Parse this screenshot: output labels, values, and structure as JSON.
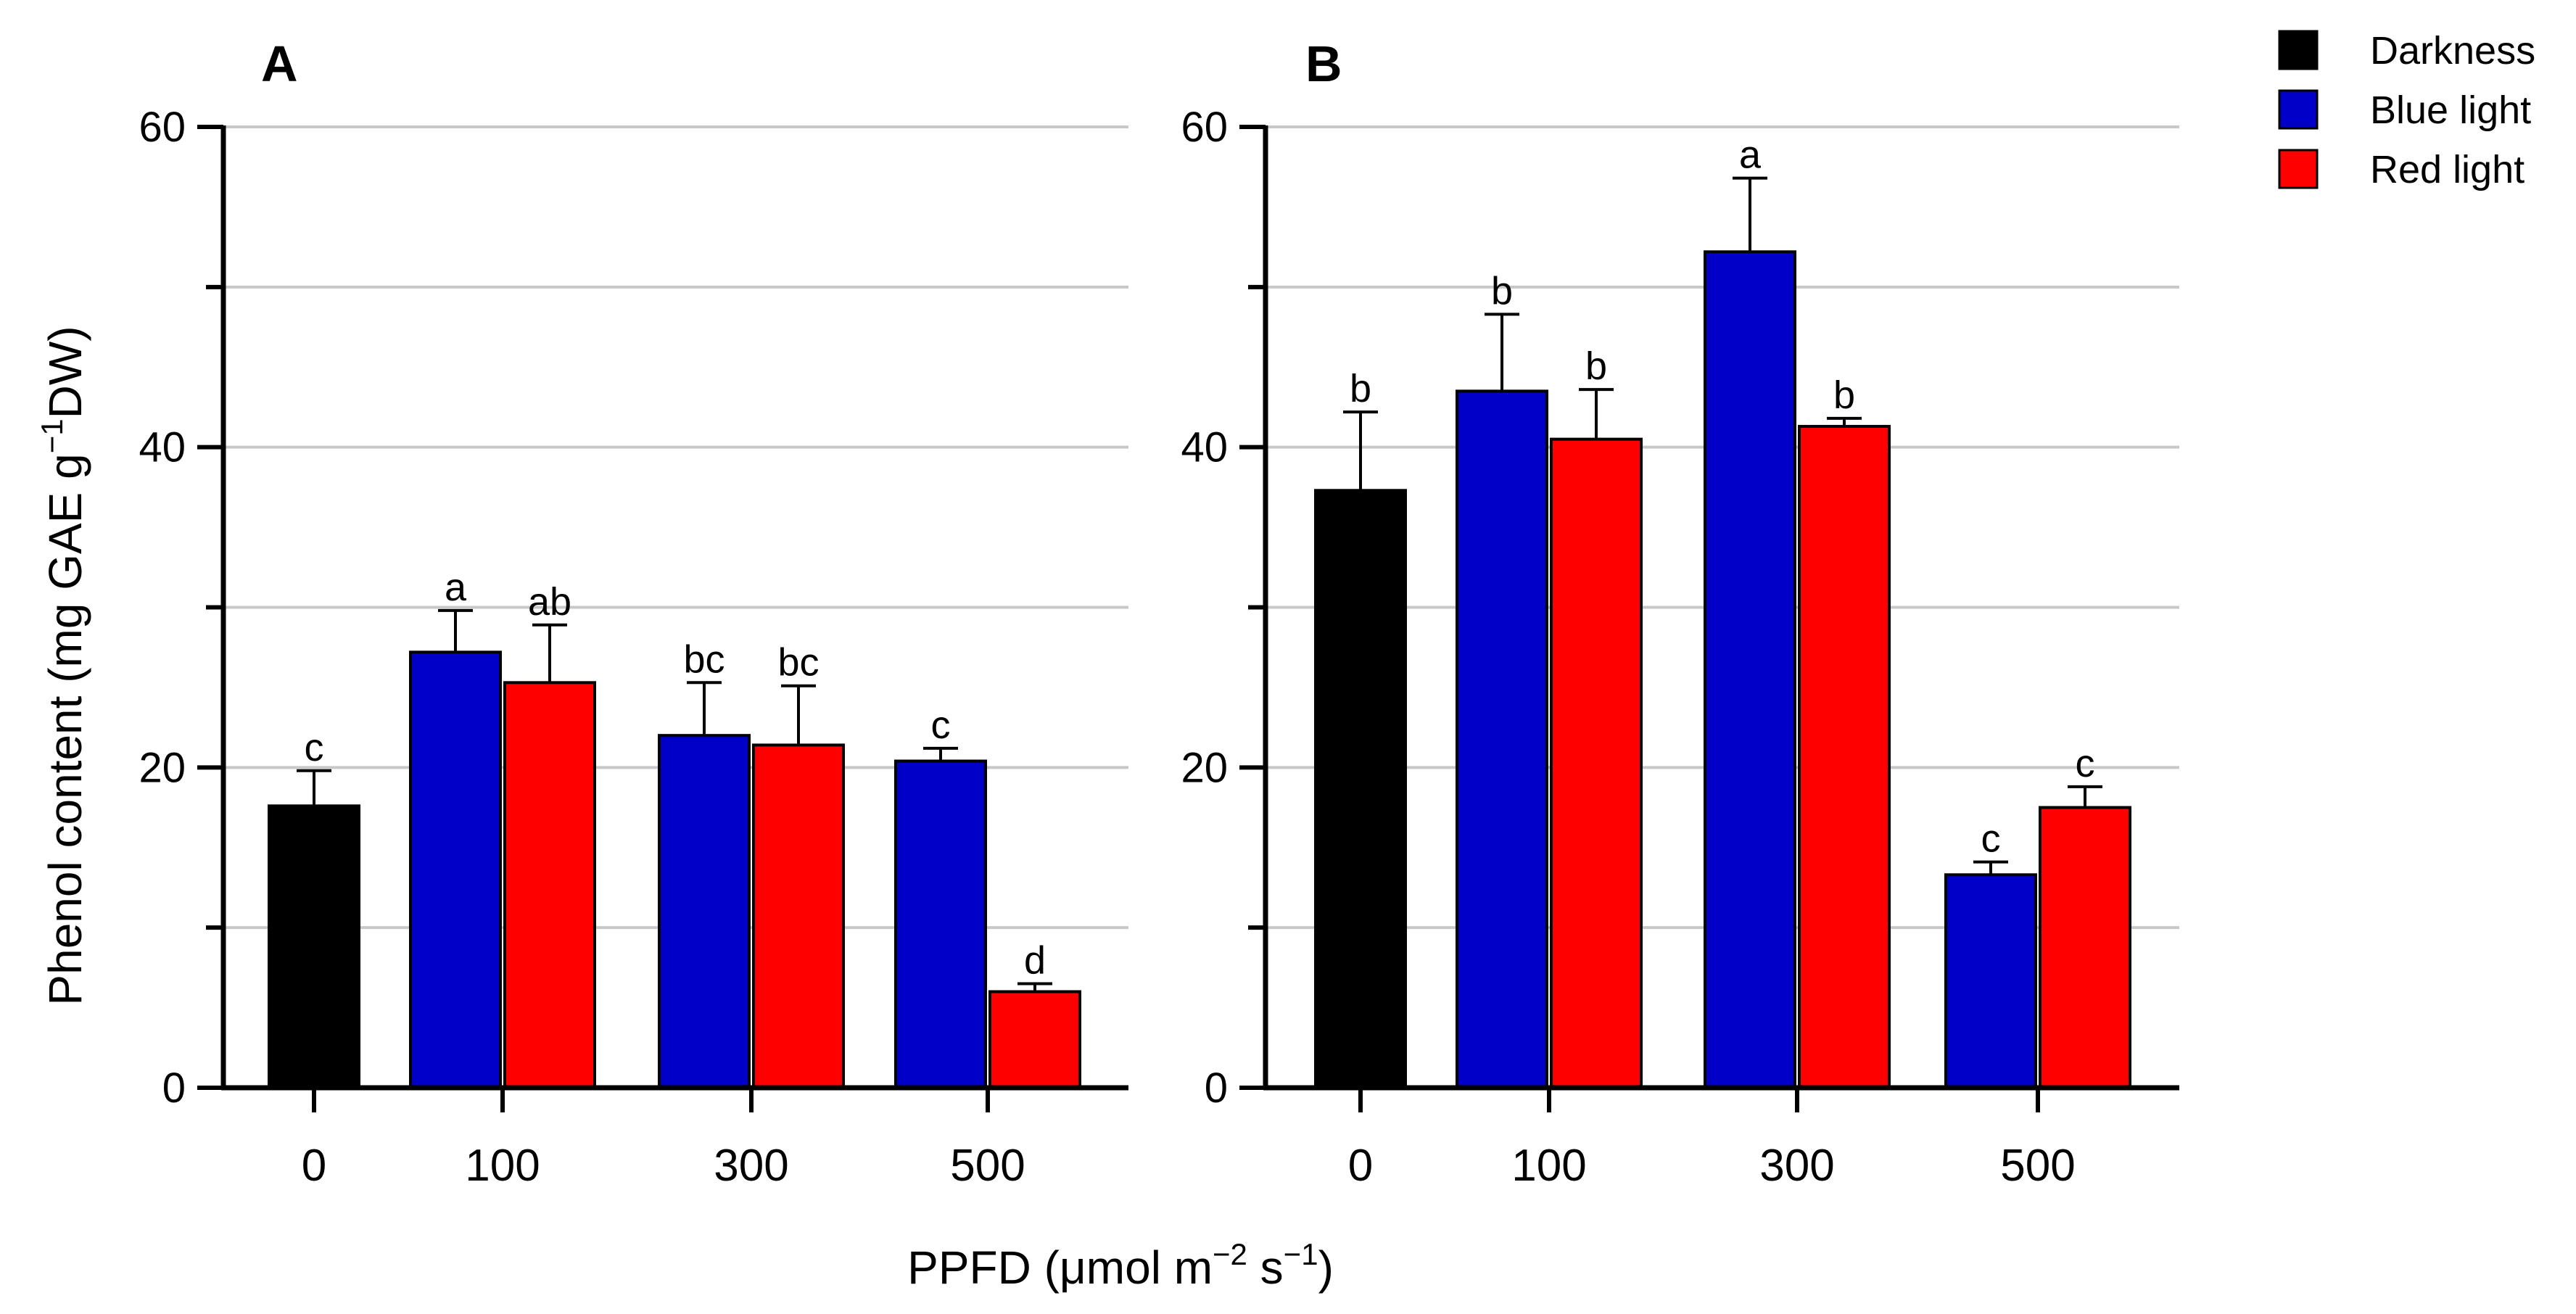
{
  "chart_data": {
    "type": "bar",
    "ylabel_main": "Phenol content (mg GAE g",
    "ylabel_sup": "−1",
    "ylabel_tail": "DW)",
    "xlabel_main": "PPFD (μmol m",
    "xlabel_sup1": "−2",
    "xlabel_mid": " s",
    "xlabel_sup2": "−1",
    "xlabel_tail": ")",
    "ylim": [
      0,
      60
    ],
    "yticks": [
      "0",
      "20",
      "40",
      "60"
    ],
    "categories": [
      "0",
      "100",
      "300",
      "500"
    ],
    "colors": {
      "Darkness": "#000000",
      "Blue light": "#0000c8",
      "Red light": "#ff0000"
    },
    "legend": {
      "position": "top-right",
      "entries": [
        "Darkness",
        "Blue light",
        "Red light"
      ]
    },
    "panels": [
      {
        "title": "A",
        "bars": [
          {
            "category": "0",
            "series": "Darkness",
            "value": 17.6,
            "error": 2.2,
            "label": "c"
          },
          {
            "category": "100",
            "series": "Blue light",
            "value": 27.2,
            "error": 2.6,
            "label": "a"
          },
          {
            "category": "100",
            "series": "Red light",
            "value": 25.3,
            "error": 3.6,
            "label": "ab"
          },
          {
            "category": "300",
            "series": "Blue light",
            "value": 22.0,
            "error": 3.3,
            "label": "bc"
          },
          {
            "category": "300",
            "series": "Red light",
            "value": 21.4,
            "error": 3.7,
            "label": "bc"
          },
          {
            "category": "500",
            "series": "Blue light",
            "value": 20.4,
            "error": 0.8,
            "label": "c"
          },
          {
            "category": "500",
            "series": "Red light",
            "value": 6.0,
            "error": 0.5,
            "label": "d"
          }
        ]
      },
      {
        "title": "B",
        "bars": [
          {
            "category": "0",
            "series": "Darkness",
            "value": 37.3,
            "error": 4.9,
            "label": "b"
          },
          {
            "category": "100",
            "series": "Blue light",
            "value": 43.5,
            "error": 4.8,
            "label": "b"
          },
          {
            "category": "100",
            "series": "Red light",
            "value": 40.5,
            "error": 3.1,
            "label": "b"
          },
          {
            "category": "300",
            "series": "Blue light",
            "value": 52.2,
            "error": 4.6,
            "label": "a"
          },
          {
            "category": "300",
            "series": "Red light",
            "value": 41.3,
            "error": 0.5,
            "label": "b"
          },
          {
            "category": "500",
            "series": "Blue light",
            "value": 13.3,
            "error": 0.8,
            "label": "c"
          },
          {
            "category": "500",
            "series": "Red light",
            "value": 17.5,
            "error": 1.3,
            "label": "c"
          }
        ]
      }
    ]
  }
}
